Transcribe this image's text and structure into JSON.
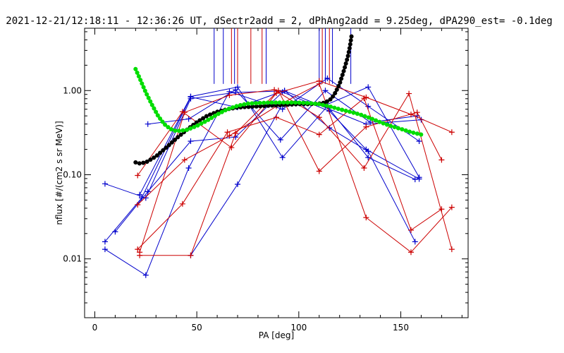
{
  "title": "2021-12-21/12:18:11 - 12:36:26 UT, dSectr2add = 2, dPhAng2add = 9.25deg, dPA290_est=  -0.1deg",
  "chart_data": {
    "type": "scatter",
    "title": "2021-12-21/12:18:11 - 12:36:26 UT, dSectr2add = 2, dPhAng2add = 9.25deg, dPA290_est=  -0.1deg",
    "xlabel": "PA [deg]",
    "ylabel": "nflux [#/(cm2 s sr MeV)]",
    "xlim": [
      -5,
      183
    ],
    "ylim": [
      0.002,
      5.5
    ],
    "yscale": "log",
    "x_ticks": [
      0,
      50,
      100,
      150
    ],
    "x_tick_labels": [
      "0",
      "50",
      "100",
      "150"
    ],
    "y_ticks": [
      0.01,
      0.1,
      1.0
    ],
    "y_tick_labels": [
      "0.01",
      "0.10",
      "1.00"
    ],
    "grid": false,
    "colors": {
      "blue": "#0000cc",
      "red": "#cc0000",
      "black": "#000000",
      "green": "#00dd00"
    },
    "vlines": {
      "blue": [
        58.5,
        63,
        68.5,
        84,
        110,
        113,
        116.5,
        125.5
      ],
      "red": [
        67,
        70,
        76.5,
        82,
        111.5,
        115
      ],
      "y_bottom": 1.2,
      "y_top": 5.5
    },
    "series": [
      {
        "color": "blue",
        "points": [
          [
            5,
            0.078
          ],
          [
            25,
            0.053
          ],
          [
            47,
            0.8
          ],
          [
            69,
            0.95
          ],
          [
            93,
            0.99
          ],
          [
            133,
            0.4
          ],
          [
            160,
            0.45
          ]
        ]
      },
      {
        "color": "blue",
        "points": [
          [
            10,
            0.021
          ],
          [
            26,
            0.063
          ],
          [
            47,
            0.25
          ],
          [
            69,
            0.28
          ],
          [
            92,
            0.96
          ],
          [
            115,
            0.57
          ],
          [
            133,
            0.2
          ],
          [
            159,
            0.089
          ]
        ]
      },
      {
        "color": "blue",
        "points": [
          [
            5,
            0.013
          ],
          [
            25,
            0.0064
          ],
          [
            46,
            0.12
          ],
          [
            66,
            0.97
          ],
          [
            92,
            0.6
          ],
          [
            114,
            1.4
          ],
          [
            134,
            0.65
          ],
          [
            159,
            0.25
          ]
        ]
      },
      {
        "color": "blue",
        "points": [
          [
            5,
            0.016
          ],
          [
            23,
            0.053
          ],
          [
            47,
            0.84
          ],
          [
            70,
            0.63
          ],
          [
            93,
            1.0
          ],
          [
            115,
            0.36
          ],
          [
            134,
            0.19
          ],
          [
            157,
            0.016
          ]
        ]
      },
      {
        "color": "blue",
        "points": [
          [
            26,
            0.4
          ],
          [
            46,
            0.46
          ],
          [
            69,
            1.02
          ],
          [
            91,
            0.26
          ],
          [
            113,
            1.0
          ],
          [
            135,
            0.42
          ],
          [
            158,
            0.5
          ]
        ]
      },
      {
        "color": "blue",
        "points": [
          [
            47,
            0.011
          ],
          [
            70,
            0.077
          ],
          [
            92,
            0.69
          ],
          [
            113,
            0.67
          ],
          [
            134,
            1.1
          ],
          [
            159,
            0.093
          ]
        ]
      },
      {
        "color": "blue",
        "points": [
          [
            22,
            0.058
          ],
          [
            47,
            0.85
          ],
          [
            70,
            1.1
          ],
          [
            92,
            0.16
          ],
          [
            114,
            0.65
          ],
          [
            134,
            0.16
          ],
          [
            157,
            0.088
          ]
        ]
      },
      {
        "color": "red",
        "points": [
          [
            21,
            0.098
          ],
          [
            43,
            0.56
          ],
          [
            67,
            0.21
          ],
          [
            89,
            0.93
          ],
          [
            110,
            1.3
          ],
          [
            133,
            0.83
          ],
          [
            155,
            0.52
          ],
          [
            175,
            0.32
          ]
        ]
      },
      {
        "color": "red",
        "points": [
          [
            22,
            0.012
          ],
          [
            44,
            0.55
          ],
          [
            66,
            0.88
          ],
          [
            88,
            1.02
          ],
          [
            110,
            0.48
          ],
          [
            132,
            0.12
          ],
          [
            154,
            0.92
          ],
          [
            175,
            0.013
          ]
        ]
      },
      {
        "color": "red",
        "points": [
          [
            21,
            0.044
          ],
          [
            44,
            0.15
          ],
          [
            66,
            0.29
          ],
          [
            89,
            0.65
          ],
          [
            110,
            1.2
          ],
          [
            133,
            0.031
          ],
          [
            155,
            0.012
          ],
          [
            175,
            0.041
          ]
        ]
      },
      {
        "color": "red",
        "points": [
          [
            21,
            0.013
          ],
          [
            43,
            0.045
          ],
          [
            65,
            0.32
          ],
          [
            89,
            0.48
          ],
          [
            110,
            0.3
          ],
          [
            132,
            0.81
          ],
          [
            155,
            0.022
          ],
          [
            170,
            0.039
          ]
        ]
      },
      {
        "color": "red",
        "points": [
          [
            22,
            0.011
          ],
          [
            47,
            0.011
          ],
          [
            69,
            0.31
          ],
          [
            90,
            1.0
          ],
          [
            110,
            0.11
          ],
          [
            133,
            0.37
          ],
          [
            158,
            0.55
          ],
          [
            170,
            0.15
          ]
        ]
      }
    ],
    "fit_curves": [
      {
        "color": "black",
        "points": [
          [
            20,
            0.14
          ],
          [
            22,
            0.136
          ],
          [
            25,
            0.14
          ],
          [
            30,
            0.165
          ],
          [
            35,
            0.21
          ],
          [
            40,
            0.27
          ],
          [
            45,
            0.34
          ],
          [
            50,
            0.42
          ],
          [
            55,
            0.5
          ],
          [
            60,
            0.56
          ],
          [
            65,
            0.6
          ],
          [
            70,
            0.63
          ],
          [
            75,
            0.64
          ],
          [
            80,
            0.65
          ],
          [
            85,
            0.66
          ],
          [
            90,
            0.67
          ],
          [
            95,
            0.68
          ],
          [
            100,
            0.69
          ],
          [
            105,
            0.69
          ],
          [
            110,
            0.7
          ],
          [
            113,
            0.72
          ],
          [
            116,
            0.8
          ],
          [
            118,
            0.95
          ],
          [
            120,
            1.2
          ],
          [
            122,
            1.7
          ],
          [
            124,
            2.5
          ],
          [
            125,
            3.3
          ],
          [
            126,
            4.7
          ]
        ]
      },
      {
        "color": "green",
        "points": [
          [
            20,
            1.8
          ],
          [
            22,
            1.4
          ],
          [
            25,
            0.95
          ],
          [
            28,
            0.68
          ],
          [
            31,
            0.5
          ],
          [
            34,
            0.4
          ],
          [
            37,
            0.35
          ],
          [
            40,
            0.33
          ],
          [
            45,
            0.34
          ],
          [
            50,
            0.38
          ],
          [
            55,
            0.44
          ],
          [
            60,
            0.52
          ],
          [
            65,
            0.6
          ],
          [
            70,
            0.66
          ],
          [
            75,
            0.7
          ],
          [
            80,
            0.71
          ],
          [
            85,
            0.72
          ],
          [
            90,
            0.72
          ],
          [
            95,
            0.72
          ],
          [
            100,
            0.72
          ],
          [
            105,
            0.71
          ],
          [
            110,
            0.69
          ],
          [
            115,
            0.65
          ],
          [
            120,
            0.6
          ],
          [
            125,
            0.56
          ],
          [
            130,
            0.52
          ],
          [
            135,
            0.47
          ],
          [
            140,
            0.42
          ],
          [
            145,
            0.38
          ],
          [
            150,
            0.35
          ],
          [
            155,
            0.32
          ],
          [
            160,
            0.3
          ]
        ]
      }
    ]
  }
}
